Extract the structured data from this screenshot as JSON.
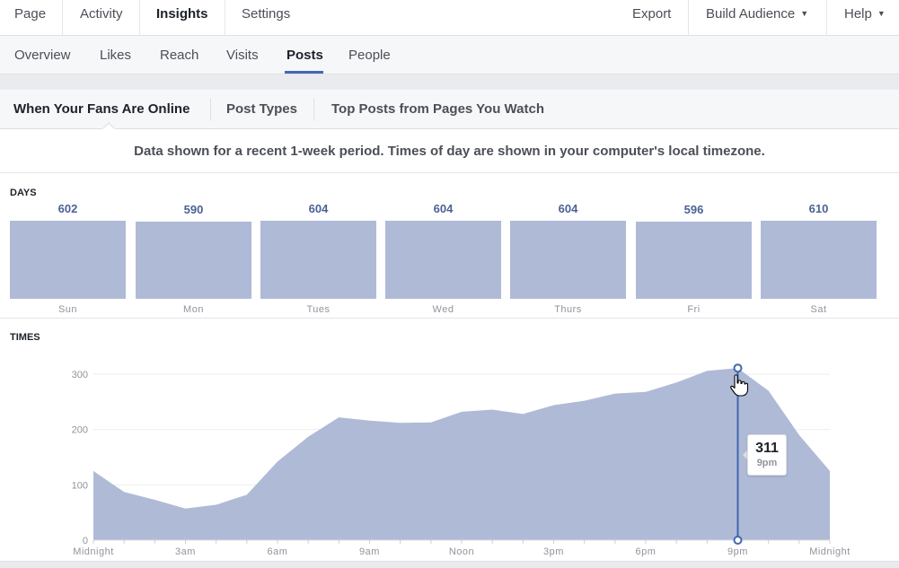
{
  "topnav": {
    "page": "Page",
    "activity": "Activity",
    "insights": "Insights",
    "settings": "Settings",
    "export": "Export",
    "build_audience": "Build Audience",
    "help": "Help"
  },
  "subnav": {
    "overview": "Overview",
    "likes": "Likes",
    "reach": "Reach",
    "visits": "Visits",
    "posts": "Posts",
    "people": "People"
  },
  "tabs": {
    "fans_online": "When Your Fans Are Online",
    "post_types": "Post Types",
    "top_posts": "Top Posts from Pages You Watch"
  },
  "notice": "Data shown for a recent 1-week period. Times of day are shown in your computer's local timezone.",
  "days_label": "DAYS",
  "times_label": "TIMES",
  "colors": {
    "bar": "#afbad6",
    "accent": "#4267b2",
    "value_text": "#4b6295"
  },
  "chart_data": [
    {
      "type": "bar",
      "categories": [
        "Sun",
        "Mon",
        "Tues",
        "Wed",
        "Thurs",
        "Fri",
        "Sat"
      ],
      "values": [
        602,
        590,
        604,
        604,
        604,
        596,
        610
      ],
      "title": "DAYS",
      "grid": false
    },
    {
      "type": "area",
      "title": "TIMES",
      "x_tick_labels": [
        "Midnight",
        "3am",
        "6am",
        "9am",
        "Noon",
        "3pm",
        "6pm",
        "9pm",
        "Midnight"
      ],
      "x": [
        "12am",
        "1am",
        "2am",
        "3am",
        "4am",
        "5am",
        "6am",
        "7am",
        "8am",
        "9am",
        "10am",
        "11am",
        "12pm",
        "1pm",
        "2pm",
        "3pm",
        "4pm",
        "5pm",
        "6pm",
        "7pm",
        "8pm",
        "9pm",
        "10pm",
        "11pm",
        "12am"
      ],
      "values": [
        125,
        87,
        73,
        57,
        64,
        82,
        142,
        187,
        222,
        216,
        212,
        213,
        232,
        236,
        228,
        244,
        252,
        265,
        268,
        285,
        306,
        311,
        270,
        190,
        125
      ],
      "y_ticks": [
        0,
        100,
        200,
        300
      ],
      "ylim": [
        0,
        300
      ],
      "grid": true,
      "highlight": {
        "value": 311,
        "label": "9pm",
        "index": 21
      }
    }
  ]
}
